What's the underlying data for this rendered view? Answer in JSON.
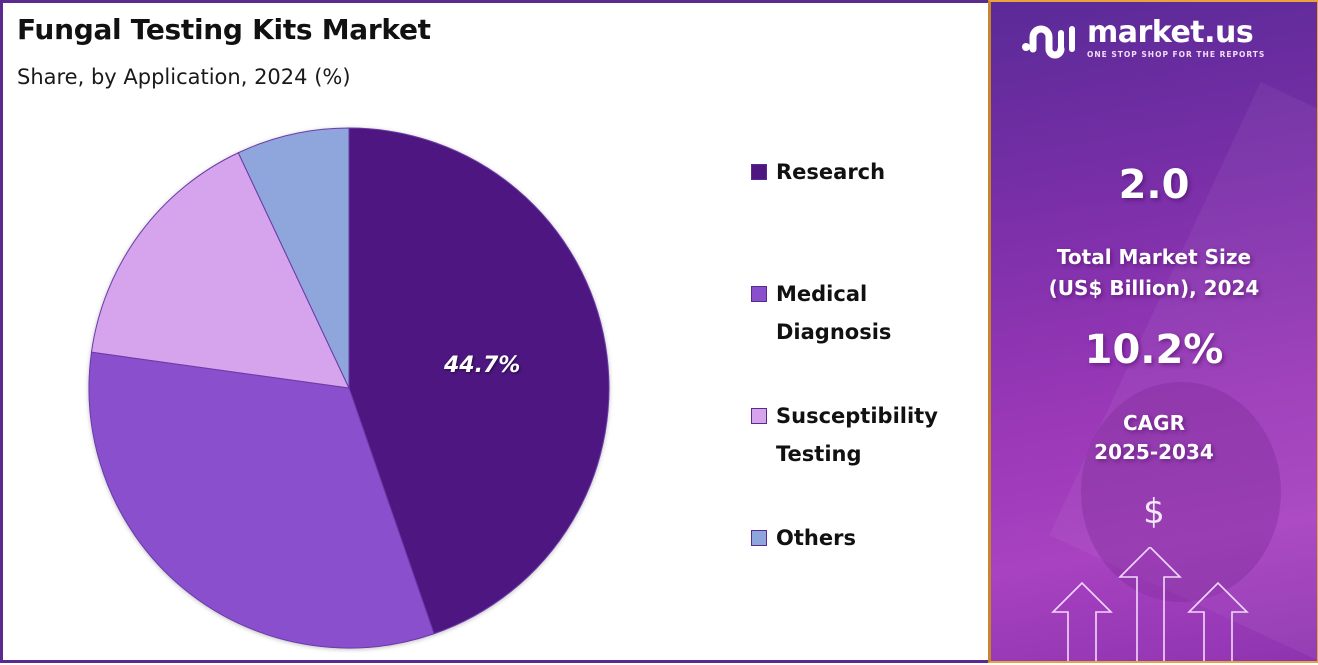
{
  "header": {
    "title": "Fungal Testing Kits Market",
    "subtitle": "Share, by Application, 2024 (%)"
  },
  "chart_data": {
    "type": "pie",
    "title": "Fungal Testing Kits Market",
    "subtitle": "Share, by Application, 2024 (%)",
    "categories": [
      "Research",
      "Medical Diagnosis",
      "Susceptibility Testing",
      "Others"
    ],
    "values": [
      44.7,
      32.5,
      15.8,
      7.0
    ],
    "colors": [
      "#4e1680",
      "#8a4fcc",
      "#d5a4ec",
      "#8ea6dc"
    ],
    "start_angle": "12 o'clock, clockwise",
    "data_labels": [
      {
        "category": "Research",
        "text": "44.7%"
      }
    ],
    "legend_position": "right"
  },
  "pie": {
    "label": "44.7%"
  },
  "legend": {
    "items": [
      {
        "label": "Research",
        "color": "#4e1680"
      },
      {
        "label": "Medical Diagnosis",
        "color": "#8a4fcc"
      },
      {
        "label": "Susceptibility Testing",
        "color": "#d5a4ec"
      },
      {
        "label": "Others",
        "color": "#8ea6dc"
      }
    ]
  },
  "sidebar": {
    "brand": "market.us",
    "tagline": "ONE STOP SHOP FOR THE REPORTS",
    "market_size_value": "2.0",
    "market_size_label_1": "Total Market Size",
    "market_size_label_2": "(US$ Billion), 2024",
    "cagr_value": "10.2%",
    "cagr_label_1": "CAGR",
    "cagr_label_2": "2025-2034",
    "currency_symbol": "$"
  },
  "colors": {
    "border_left": "#5b2a8e",
    "border_right": "#e8a33d",
    "panel_gradient_start": "#5a2a98",
    "panel_gradient_end": "#a842c0"
  }
}
